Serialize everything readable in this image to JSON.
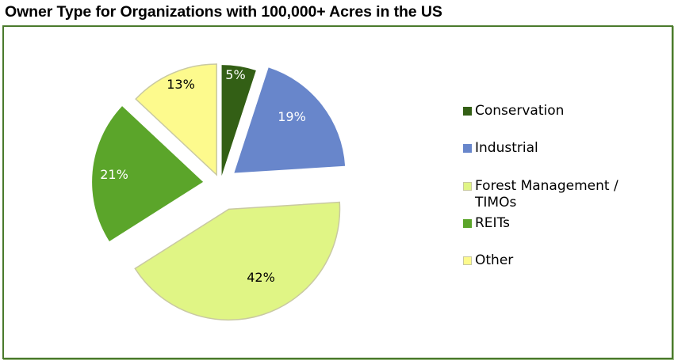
{
  "chart_data": {
    "type": "pie",
    "title": "Owner Type for Organizations with 100,000+ Acres in the US",
    "categories": [
      "Conservation",
      "Industrial",
      "Forest Management / TIMOs",
      "REITs",
      "Other"
    ],
    "values": [
      5,
      19,
      42,
      21,
      13
    ],
    "labels": [
      "5%",
      "19%",
      "42%",
      "21%",
      "13%"
    ],
    "colors": [
      "#335f15",
      "#6886cb",
      "#e0f585",
      "#5ba52a",
      "#fdfa8d"
    ],
    "label_colors": [
      "#ffffff",
      "#ffffff",
      "#000000",
      "#ffffff",
      "#000000"
    ],
    "exploded": true,
    "start_angle": "12 o'clock, clockwise",
    "legend_position": "right"
  },
  "legend": [
    {
      "label_line1": "Conservation",
      "label_line2": ""
    },
    {
      "label_line1": "Industrial",
      "label_line2": ""
    },
    {
      "label_line1": "Forest Management /",
      "label_line2": "TIMOs"
    },
    {
      "label_line1": "REITs",
      "label_line2": ""
    },
    {
      "label_line1": "Other",
      "label_line2": ""
    }
  ]
}
